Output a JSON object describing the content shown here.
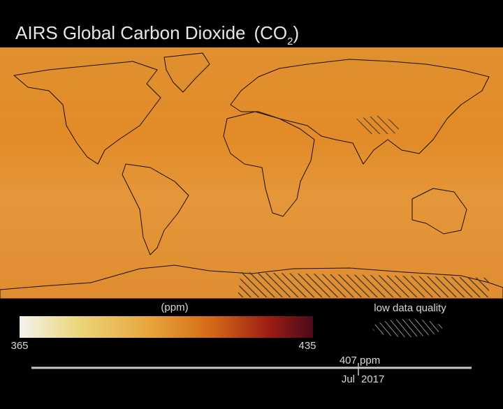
{
  "header": {
    "title": "AIRS Global Carbon Dioxide",
    "formula_open": "(CO",
    "formula_sub": "2",
    "formula_close": ")"
  },
  "colorbar": {
    "unit": "(ppm)",
    "ticks": [
      365,
      435
    ]
  },
  "legend": {
    "hatch_label": "low data quality"
  },
  "timeline": {
    "value_label": "407 ppm",
    "month": "Jul",
    "year": "2017"
  }
}
